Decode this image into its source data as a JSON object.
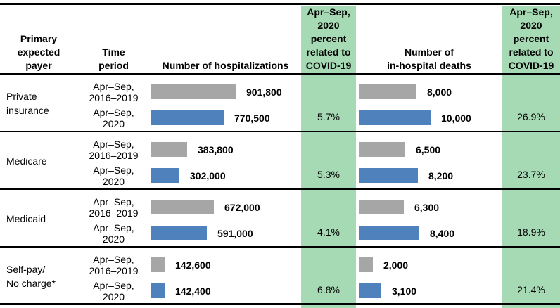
{
  "colors": {
    "bar_baseline_gray": "#A6A6A6",
    "bar_2020_blue": "#4F81BD",
    "column_highlight_green": "#A6DAB4",
    "rule_black": "#000000"
  },
  "header": {
    "payer": "Primary\nexpected\npayer",
    "time_period": "Time\nperiod",
    "hospitalizations": "Number of hospitalizations",
    "covid_pct_hosp": "Apr–Sep,\n2020\npercent\nrelated to\nCOVID-19",
    "deaths": "Number of\nin-hospital deaths",
    "covid_pct_deaths": "Apr–Sep,\n2020\npercent\nrelated to\nCOVID-19"
  },
  "rows": [
    {
      "payer": "Private\ninsurance",
      "baseline": {
        "period": "Apr–Sep,\n2016–2019",
        "hosp_value": 901800,
        "hosp_label": "901,800",
        "deaths_value": 8000,
        "deaths_label": "8,000"
      },
      "pandemic": {
        "period": "Apr–Sep,\n2020",
        "hosp_value": 770500,
        "hosp_label": "770,500",
        "deaths_value": 10000,
        "deaths_label": "10,000"
      },
      "hosp_covid_pct": "5.7%",
      "deaths_covid_pct": "26.9%"
    },
    {
      "payer": "Medicare",
      "baseline": {
        "period": "Apr–Sep,\n2016–2019",
        "hosp_value": 383800,
        "hosp_label": "383,800",
        "deaths_value": 6500,
        "deaths_label": "6,500"
      },
      "pandemic": {
        "period": "Apr–Sep,\n2020",
        "hosp_value": 302000,
        "hosp_label": "302,000",
        "deaths_value": 8200,
        "deaths_label": "8,200"
      },
      "hosp_covid_pct": "5.3%",
      "deaths_covid_pct": "23.7%"
    },
    {
      "payer": "Medicaid",
      "baseline": {
        "period": "Apr–Sep,\n2016–2019",
        "hosp_value": 672000,
        "hosp_label": "672,000",
        "deaths_value": 6300,
        "deaths_label": "6,300"
      },
      "pandemic": {
        "period": "Apr–Sep,\n2020",
        "hosp_value": 591000,
        "hosp_label": "591,000",
        "deaths_value": 8400,
        "deaths_label": "8,400"
      },
      "hosp_covid_pct": "4.1%",
      "deaths_covid_pct": "18.9%"
    },
    {
      "payer": "Self-pay/\nNo charge*",
      "baseline": {
        "period": "Apr–Sep,\n2016–2019",
        "hosp_value": 142600,
        "hosp_label": "142,600",
        "deaths_value": 2000,
        "deaths_label": "2,000"
      },
      "pandemic": {
        "period": "Apr–Sep,\n2020",
        "hosp_value": 142400,
        "hosp_label": "142,400",
        "deaths_value": 3100,
        "deaths_label": "3,100"
      },
      "hosp_covid_pct": "6.8%",
      "deaths_covid_pct": "21.4%"
    }
  ],
  "chart_data": {
    "type": "bar",
    "orientation": "horizontal",
    "categories": [
      "Private insurance",
      "Medicare",
      "Medicaid",
      "Self-pay/No charge*"
    ],
    "series": [
      {
        "name": "Number of hospitalizations, Apr–Sep 2016–2019",
        "color": "#A6A6A6",
        "values": [
          901800,
          383800,
          672000,
          142600
        ]
      },
      {
        "name": "Number of hospitalizations, Apr–Sep 2020",
        "color": "#4F81BD",
        "values": [
          770500,
          302000,
          591000,
          142400
        ]
      },
      {
        "name": "Number of in-hospital deaths, Apr–Sep 2016–2019",
        "color": "#A6A6A6",
        "values": [
          8000,
          6500,
          6300,
          2000
        ]
      },
      {
        "name": "Number of in-hospital deaths, Apr–Sep 2020",
        "color": "#4F81BD",
        "values": [
          10000,
          8200,
          8400,
          3100
        ]
      },
      {
        "name": "Apr–Sep 2020 percent related to COVID-19 (hospitalizations)",
        "values": [
          5.7,
          5.3,
          4.1,
          6.8
        ]
      },
      {
        "name": "Apr–Sep 2020 percent related to COVID-19 (in-hospital deaths)",
        "values": [
          26.9,
          23.7,
          18.9,
          21.4
        ]
      }
    ],
    "title": "",
    "xlabel": "",
    "ylabel": "",
    "grid": false,
    "legend_position": "none",
    "data_labels": true
  }
}
